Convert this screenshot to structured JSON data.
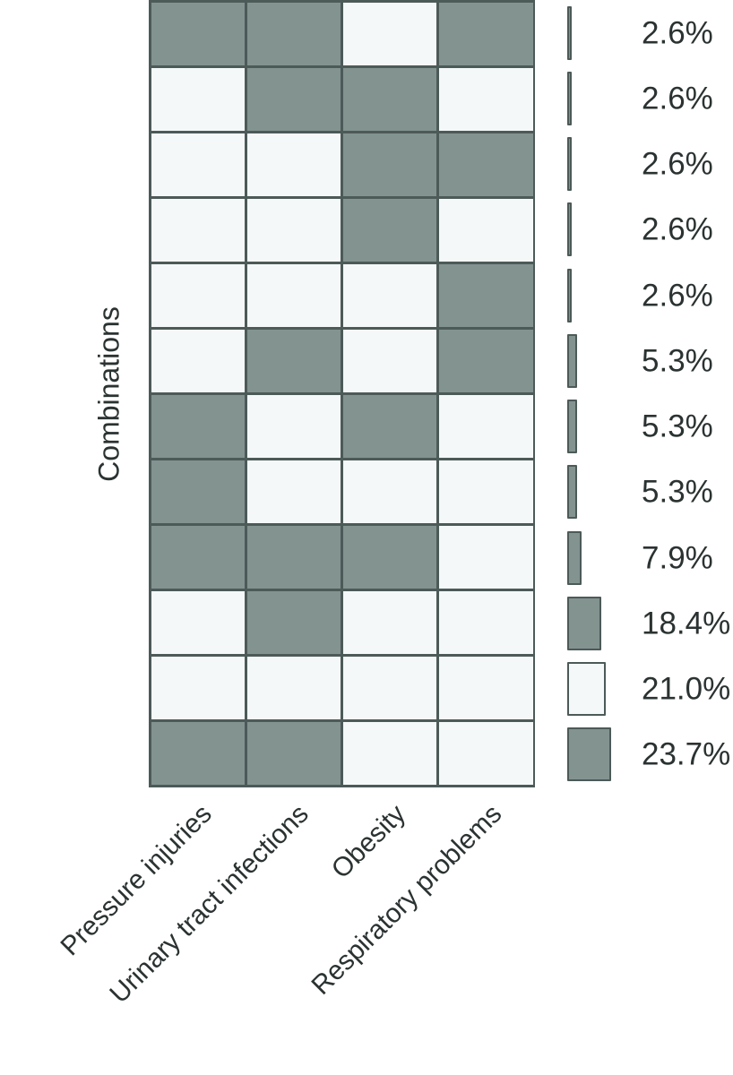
{
  "chart_data": {
    "type": "heatmap",
    "title": "",
    "ylabel": "Combinations",
    "columns": [
      "Pressure injuries",
      "Urinary tract infections",
      "Obesity",
      "Respiratory problems"
    ],
    "rows": [
      {
        "cells": [
          1,
          1,
          0,
          1
        ],
        "value": 2.6,
        "percent_label": "2.6%"
      },
      {
        "cells": [
          0,
          1,
          1,
          0
        ],
        "value": 2.6,
        "percent_label": "2.6%"
      },
      {
        "cells": [
          0,
          0,
          1,
          1
        ],
        "value": 2.6,
        "percent_label": "2.6%"
      },
      {
        "cells": [
          0,
          0,
          1,
          0
        ],
        "value": 2.6,
        "percent_label": "2.6%"
      },
      {
        "cells": [
          0,
          0,
          0,
          1
        ],
        "value": 2.6,
        "percent_label": "2.6%"
      },
      {
        "cells": [
          0,
          1,
          0,
          1
        ],
        "value": 5.3,
        "percent_label": "5.3%"
      },
      {
        "cells": [
          1,
          0,
          1,
          0
        ],
        "value": 5.3,
        "percent_label": "5.3%"
      },
      {
        "cells": [
          1,
          0,
          0,
          0
        ],
        "value": 5.3,
        "percent_label": "5.3%"
      },
      {
        "cells": [
          1,
          1,
          1,
          0
        ],
        "value": 7.9,
        "percent_label": "7.9%"
      },
      {
        "cells": [
          0,
          1,
          0,
          0
        ],
        "value": 18.4,
        "percent_label": "18.4%"
      },
      {
        "cells": [
          0,
          0,
          0,
          0
        ],
        "value": 21.0,
        "percent_label": "21.0%"
      },
      {
        "cells": [
          1,
          1,
          0,
          0
        ],
        "value": 23.7,
        "percent_label": "23.7%"
      }
    ],
    "colors": {
      "filled": "#839390",
      "empty": "#f4f8f8",
      "border": "#4c5a58",
      "text": "#2b3232"
    },
    "legend_position": "right",
    "grid": true
  }
}
